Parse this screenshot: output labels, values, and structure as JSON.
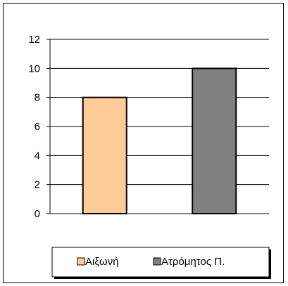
{
  "chart_data": {
    "type": "bar",
    "categories": [
      "Αιξωνή",
      "Ατρόμητος Π."
    ],
    "values": [
      8,
      10
    ],
    "colors": [
      "#FFCC99",
      "#808080"
    ],
    "ylim": [
      0,
      12
    ],
    "yticks": [
      0,
      2,
      4,
      6,
      8,
      10,
      12
    ],
    "grid": true,
    "legend": {
      "placement": "bottom",
      "entries": [
        "Αιξωνή",
        "Ατρόμητος Π."
      ]
    }
  }
}
